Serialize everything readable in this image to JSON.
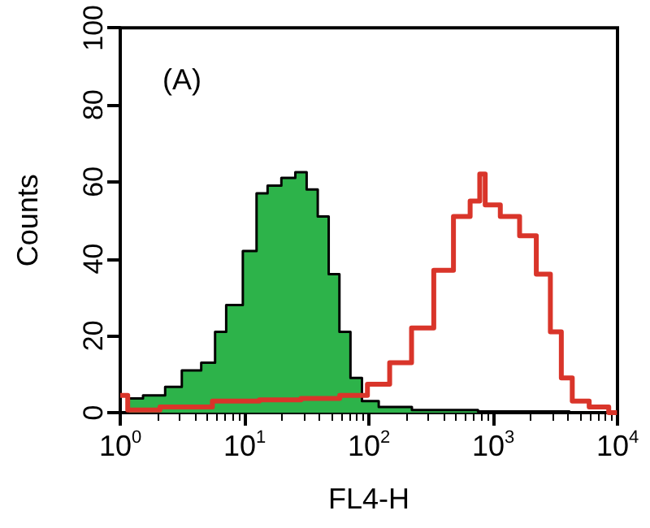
{
  "chart_data": {
    "type": "step",
    "xlabel": "FL4-H",
    "ylabel": "Counts",
    "annotations": [
      "(A)"
    ],
    "log": "x",
    "grid": false,
    "marker": "none",
    "xlim": [
      1,
      10000
    ],
    "xticks": [
      {
        "value": 1,
        "label": "10$^{0}$"
      },
      {
        "value": 10,
        "label": "10$^{1}$"
      },
      {
        "value": 100,
        "label": "10$^{2}$"
      },
      {
        "value": 1000,
        "label": "10$^{3}$"
      },
      {
        "value": 10000,
        "label": "10$^{4}$"
      }
    ],
    "ylim": [
      0,
      100
    ],
    "yticks": [
      0,
      20,
      40,
      60,
      80,
      100
    ],
    "series": [
      {
        "type": "area",
        "color": "#2db34a",
        "x": [
          1.18,
          1.97,
          2.68,
          3.65,
          5.5,
          6.1,
          8.3,
          11.3,
          13.8,
          17,
          23,
          28.5,
          35,
          43,
          52.5,
          64,
          79,
          98,
          147,
          335,
          1700,
          9900
        ],
        "values": [
          3.7,
          4.5,
          6.7,
          11,
          13,
          21,
          28,
          42,
          57,
          59,
          61,
          62.5,
          58,
          51,
          36,
          21,
          9,
          3,
          1.5,
          0.7,
          0.3,
          0
        ]
      },
      {
        "color": "#d9352a",
        "x": [
          1.0,
          1.32,
          3.3,
          9.2,
          18.8,
          43,
          79,
          120,
          180,
          270,
          410,
          560,
          760,
          800,
          930,
          1400,
          1900,
          2600,
          3200,
          3900,
          4800,
          7300,
          9900
        ],
        "values": [
          4.5,
          0.7,
          1.5,
          3,
          3.3,
          3.7,
          4.5,
          7.4,
          13,
          22,
          37,
          51,
          55,
          62,
          54,
          51,
          46,
          36,
          21,
          9,
          3,
          1.5,
          0
        ]
      }
    ]
  }
}
